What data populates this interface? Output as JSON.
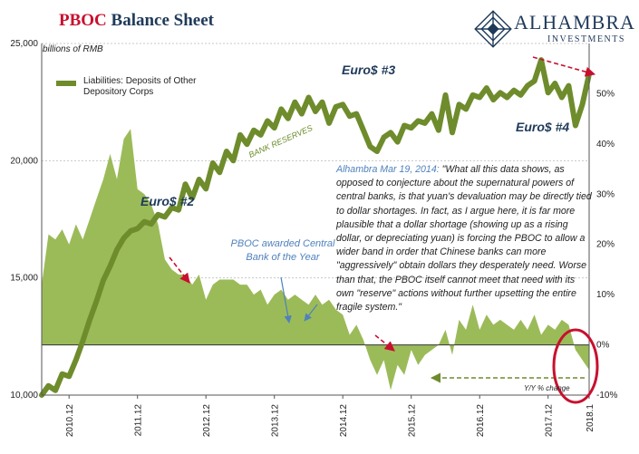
{
  "header": {
    "title_accent": "PBOC",
    "title_rest": " Balance Sheet",
    "brand_name": "ALHAMBRA",
    "brand_sub": "INVESTMENTS"
  },
  "colors": {
    "series": "#6e8c2c",
    "area": "#9bbb59",
    "accent": "#c8102e",
    "annotation": "#4f81bd",
    "navy": "#1f3a5a"
  },
  "chart_data": {
    "type": "area",
    "title": "PBOC Balance Sheet",
    "ylabel": "billions of RMB",
    "ylim": [
      10000,
      25000
    ],
    "y2lim": [
      -10,
      60
    ],
    "yticks": [
      "10,000",
      "15,000",
      "20,000",
      "25,000"
    ],
    "y2ticks": [
      "-10%",
      "0%",
      "10%",
      "20%",
      "30%",
      "40%",
      "50%"
    ],
    "xticks": [
      "2010.12",
      "2011.12",
      "2012.12",
      "2013.12",
      "2014.12",
      "2015.12",
      "2016.12",
      "2017.12",
      "2018.1"
    ],
    "grid": true,
    "legend_position": "top-left",
    "series": [
      {
        "name": "Liabilities: Deposits of Other Depository Corps",
        "type": "line",
        "axis": "left",
        "x": [
          2010.0,
          2010.1,
          2010.2,
          2010.3,
          2010.4,
          2010.5,
          2010.6,
          2010.7,
          2010.8,
          2010.9,
          2011.0,
          2011.1,
          2011.2,
          2011.3,
          2011.4,
          2011.5,
          2011.6,
          2011.7,
          2011.8,
          2011.9,
          2012.0,
          2012.1,
          2012.2,
          2012.3,
          2012.4,
          2012.5,
          2012.6,
          2012.7,
          2012.8,
          2012.9,
          2013.0,
          2013.1,
          2013.2,
          2013.3,
          2013.4,
          2013.5,
          2013.6,
          2013.7,
          2013.8,
          2013.9,
          2014.0,
          2014.1,
          2014.2,
          2014.3,
          2014.4,
          2014.5,
          2014.6,
          2014.7,
          2014.8,
          2014.9,
          2015.0,
          2015.1,
          2015.2,
          2015.3,
          2015.4,
          2015.5,
          2015.6,
          2015.7,
          2015.8,
          2015.9,
          2016.0,
          2016.1,
          2016.2,
          2016.3,
          2016.4,
          2016.5,
          2016.6,
          2016.7,
          2016.8,
          2016.9,
          2017.0,
          2017.1,
          2017.2,
          2017.3,
          2017.4,
          2017.5,
          2017.6,
          2017.7,
          2017.8,
          2017.9,
          2018.0
        ],
        "values": [
          10000,
          10400,
          10200,
          10900,
          10800,
          11500,
          12300,
          13200,
          14000,
          14900,
          15500,
          16200,
          16700,
          17000,
          17100,
          17400,
          17300,
          17700,
          17600,
          18000,
          17900,
          19000,
          18400,
          19200,
          18800,
          19900,
          19500,
          20400,
          20000,
          21100,
          20700,
          21300,
          21100,
          21700,
          21400,
          22200,
          21800,
          22500,
          22000,
          22700,
          22100,
          22500,
          21600,
          22300,
          22400,
          21900,
          22000,
          21300,
          20600,
          20400,
          21000,
          21200,
          20800,
          21500,
          21400,
          21700,
          21600,
          22000,
          21300,
          22800,
          21200,
          22400,
          22200,
          22800,
          22700,
          23100,
          22600,
          22900,
          22700,
          23000,
          22800,
          23200,
          23400,
          24300,
          22900,
          23300,
          22700,
          23200,
          21500,
          22400,
          23700
        ]
      },
      {
        "name": "Y/Y % change",
        "type": "area",
        "axis": "right",
        "x": [
          2010.0,
          2010.1,
          2010.2,
          2010.3,
          2010.4,
          2010.5,
          2010.6,
          2010.7,
          2010.8,
          2010.9,
          2011.0,
          2011.1,
          2011.2,
          2011.3,
          2011.4,
          2011.5,
          2011.6,
          2011.7,
          2011.8,
          2011.9,
          2012.0,
          2012.1,
          2012.2,
          2012.3,
          2012.4,
          2012.5,
          2012.6,
          2012.7,
          2012.8,
          2012.9,
          2013.0,
          2013.1,
          2013.2,
          2013.3,
          2013.4,
          2013.5,
          2013.6,
          2013.7,
          2013.8,
          2013.9,
          2014.0,
          2014.1,
          2014.2,
          2014.3,
          2014.4,
          2014.5,
          2014.6,
          2014.7,
          2014.8,
          2014.9,
          2015.0,
          2015.1,
          2015.2,
          2015.3,
          2015.4,
          2015.5,
          2015.6,
          2015.7,
          2015.8,
          2015.9,
          2016.0,
          2016.1,
          2016.2,
          2016.3,
          2016.4,
          2016.5,
          2016.6,
          2016.7,
          2016.8,
          2016.9,
          2017.0,
          2017.1,
          2017.2,
          2017.3,
          2017.4,
          2017.5,
          2017.6,
          2017.7,
          2017.8,
          2017.9,
          2018.0
        ],
        "values": [
          12,
          22,
          21,
          23,
          20,
          24,
          21,
          25,
          29,
          33,
          38,
          33,
          41,
          43,
          31,
          30,
          28,
          24,
          17,
          15,
          14,
          14,
          12,
          14,
          9,
          12,
          13,
          13,
          13,
          12,
          12,
          10,
          11,
          8,
          10,
          11,
          9,
          10,
          9,
          8,
          10,
          8,
          9,
          7,
          6,
          2,
          4,
          1,
          -3,
          -6,
          -3,
          -9,
          -4,
          -6,
          -1,
          -4,
          -2,
          -1,
          0,
          3,
          -2,
          5,
          3,
          8,
          3,
          6,
          4,
          5,
          4,
          3,
          5,
          3,
          6,
          2,
          4,
          3,
          5,
          4,
          -1,
          -3,
          -5
        ]
      }
    ],
    "annotations": {
      "euro2": "Euro$ #2",
      "euro3": "Euro$ #3",
      "euro4": "Euro$ #4",
      "bank_reserves": "BANK RESERVES",
      "pboc_award": "PBOC awarded Central Bank of the Year",
      "yy_change": "Y/Y % change",
      "quote_source": "Alhambra Mar 19, 2014:",
      "quote_text": " \"What all this data shows, as opposed to conjecture about the supernatural powers of central banks, is that yuan's devaluation may be directly tied to dollar shortages. In fact, as I argue here, it is far more plausible that a dollar shortage (showing up as a rising dollar, or depreciating yuan) is forcing the PBOC to allow a wider band in order that Chinese banks can more \"aggressively\" obtain dollars they desperately need. Worse than that, the PBOC itself cannot meet that need with its own \"reserve\" actions without further upsetting the entire fragile system.\""
    }
  }
}
